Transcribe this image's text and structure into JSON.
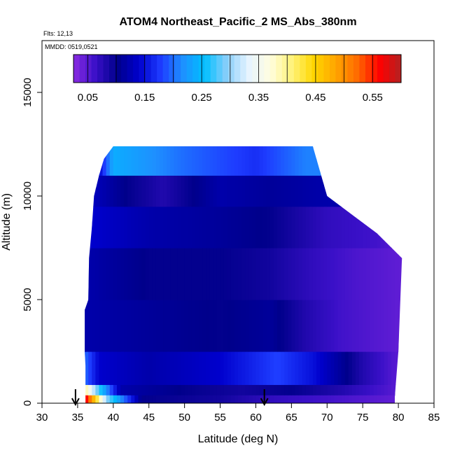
{
  "chart_data": {
    "type": "heatmap",
    "title": "ATOM4 Northeast_Pacific_2 MS_Abs_380nm",
    "flights_label": "Flts: 12,13",
    "mmdd_label": "MMDD: 0519,0521",
    "xlabel": "Latitude (deg N)",
    "ylabel": "Altitude (m)",
    "xlim": [
      30,
      85
    ],
    "ylim": [
      0,
      17500
    ],
    "x_ticks": [
      "30",
      "35",
      "40",
      "45",
      "50",
      "55",
      "60",
      "65",
      "70",
      "75",
      "80",
      "85"
    ],
    "y_ticks": [
      "0",
      "5000",
      "10000",
      "15000"
    ],
    "colorbar": {
      "range": [
        0.025,
        0.6
      ],
      "tick_labels": [
        "0.05",
        "0.15",
        "0.25",
        "0.35",
        "0.45",
        "0.55"
      ],
      "colors": [
        "#8a2be2",
        "#3a10c8",
        "#00008b",
        "#0000cd",
        "#1e3cff",
        "#1e90ff",
        "#00bfff",
        "#87cefa",
        "#e6f4ff",
        "#fffde0",
        "#fff27a",
        "#ffd700",
        "#ffa500",
        "#ff6a00",
        "#ff0000",
        "#b22222"
      ]
    },
    "arrows_latitude": [
      34.7,
      61.2
    ],
    "profile_outline": [
      [
        36.1,
        0
      ],
      [
        36.1,
        1800
      ],
      [
        36.0,
        2500
      ],
      [
        36.0,
        4500
      ],
      [
        36.5,
        5000
      ],
      [
        36.6,
        7000
      ],
      [
        37.0,
        8500
      ],
      [
        37.3,
        10000
      ],
      [
        38.0,
        11000
      ],
      [
        38.7,
        11800
      ],
      [
        40.0,
        12400
      ],
      [
        68.0,
        12400
      ],
      [
        70.0,
        10000
      ],
      [
        77.0,
        8200
      ],
      [
        80.5,
        7000
      ],
      [
        80.0,
        2500
      ],
      [
        79.5,
        300
      ],
      [
        79.5,
        0
      ]
    ],
    "layers": [
      {
        "alt_range": [
          0,
          400
        ],
        "values": [
          [
            36.0,
            0.58
          ],
          [
            37.5,
            0.45
          ],
          [
            39.0,
            0.3
          ],
          [
            41.0,
            0.22
          ],
          [
            44.0,
            0.1
          ],
          [
            55.0,
            0.09
          ],
          [
            62.0,
            0.07
          ],
          [
            70.0,
            0.06
          ],
          [
            79.5,
            0.045
          ]
        ]
      },
      {
        "alt_range": [
          400,
          900
        ],
        "values": [
          [
            36.0,
            0.4
          ],
          [
            37.5,
            0.3
          ],
          [
            39.0,
            0.22
          ],
          [
            41.0,
            0.12
          ],
          [
            50.0,
            0.1
          ],
          [
            58.0,
            0.09
          ],
          [
            65.0,
            0.1
          ],
          [
            72.0,
            0.08
          ],
          [
            79.5,
            0.05
          ]
        ]
      },
      {
        "alt_range": [
          900,
          2500
        ],
        "values": [
          [
            36.0,
            0.2
          ],
          [
            38.0,
            0.14
          ],
          [
            45.0,
            0.12
          ],
          [
            55.0,
            0.14
          ],
          [
            63.0,
            0.18
          ],
          [
            68.0,
            0.15
          ],
          [
            75.0,
            0.08
          ],
          [
            79.5,
            0.05
          ]
        ]
      },
      {
        "alt_range": [
          2500,
          5000
        ],
        "values": [
          [
            36.0,
            0.12
          ],
          [
            45.0,
            0.11
          ],
          [
            55.0,
            0.1
          ],
          [
            62.0,
            0.11
          ],
          [
            67.0,
            0.08
          ],
          [
            72.0,
            0.06
          ],
          [
            80.0,
            0.045
          ]
        ]
      },
      {
        "alt_range": [
          5000,
          7500
        ],
        "values": [
          [
            36.5,
            0.12
          ],
          [
            45.0,
            0.1
          ],
          [
            55.0,
            0.1
          ],
          [
            62.0,
            0.09
          ],
          [
            68.0,
            0.07
          ],
          [
            74.0,
            0.055
          ],
          [
            80.5,
            0.045
          ]
        ]
      },
      {
        "alt_range": [
          7500,
          9500
        ],
        "values": [
          [
            37.0,
            0.14
          ],
          [
            45.0,
            0.12
          ],
          [
            55.0,
            0.11
          ],
          [
            62.0,
            0.1
          ],
          [
            70.0,
            0.07
          ],
          [
            77.0,
            0.06
          ],
          [
            80.5,
            0.045
          ]
        ]
      },
      {
        "alt_range": [
          9500,
          11000
        ],
        "values": [
          [
            37.3,
            0.13
          ],
          [
            42.0,
            0.1
          ],
          [
            47.0,
            0.08
          ],
          [
            55.0,
            0.12
          ],
          [
            62.0,
            0.11
          ],
          [
            70.0,
            0.12
          ]
        ]
      },
      {
        "alt_range": [
          11000,
          12400
        ],
        "values": [
          [
            38.0,
            0.14
          ],
          [
            40.0,
            0.24
          ],
          [
            50.0,
            0.2
          ],
          [
            60.0,
            0.17
          ],
          [
            67.0,
            0.21
          ]
        ]
      }
    ]
  }
}
